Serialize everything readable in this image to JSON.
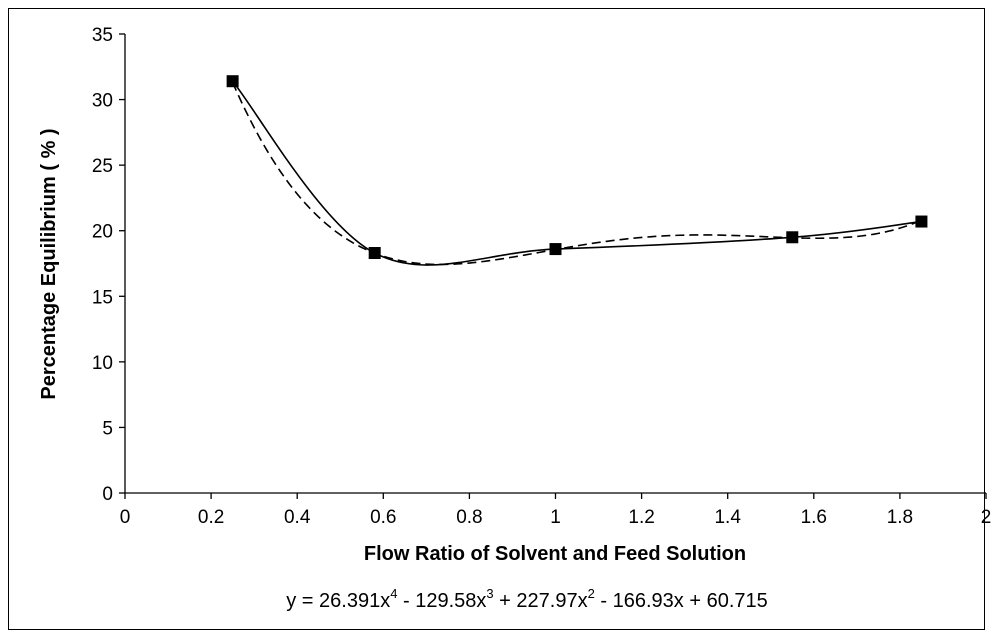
{
  "chart_data": {
    "type": "line",
    "title": "",
    "xlabel": "Flow Ratio of Solvent and Feed Solution",
    "ylabel": "Percentage Equilibrium ( % )",
    "xlim": [
      0,
      2
    ],
    "ylim": [
      0,
      35
    ],
    "x_ticks": [
      "0",
      "0.2",
      "0.4",
      "0.6",
      "0.8",
      "1",
      "1.2",
      "1.4",
      "1.6",
      "1.8",
      "2"
    ],
    "y_ticks": [
      "0",
      "5",
      "10",
      "15",
      "20",
      "25",
      "30",
      "35"
    ],
    "grid": false,
    "legend": false,
    "series": [
      {
        "style": "solid-with-square-markers",
        "x": [
          0.25,
          0.58,
          1.0,
          1.55,
          1.85
        ],
        "y": [
          31.4,
          18.3,
          18.6,
          19.5,
          20.7
        ]
      }
    ],
    "trendline": {
      "style": "dashed",
      "coefficients": [
        26.391,
        -129.58,
        227.97,
        -166.93,
        60.715
      ]
    },
    "equation": {
      "prefix": "y = 26.391x",
      "p1": "4",
      "t2": " - 129.58x",
      "p2": "3",
      "t3": " + 227.97x",
      "p3": "2",
      "t4": " - 166.93x + 60.715"
    }
  }
}
